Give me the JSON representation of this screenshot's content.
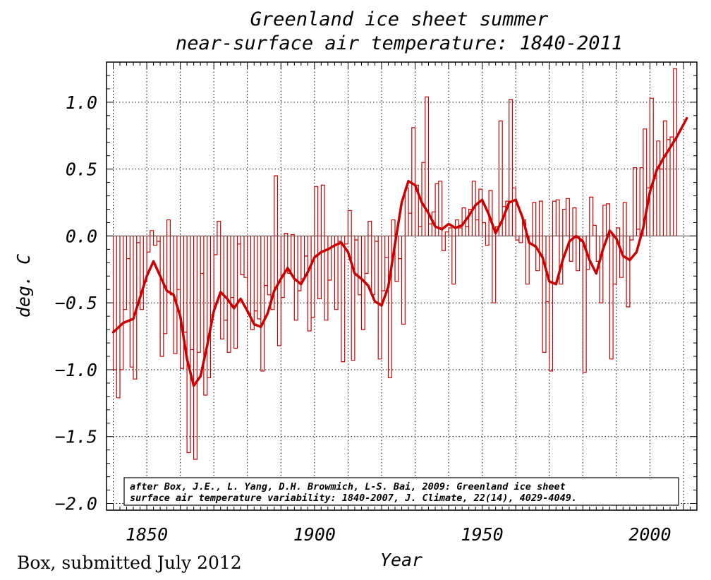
{
  "chart_data": {
    "type": "bar",
    "title": [
      "Greenland ice sheet summer",
      "near-surface air temperature: 1840-2011"
    ],
    "xlabel": "Year",
    "ylabel": "deg. C",
    "xlim": [
      1838,
      2014
    ],
    "ylim": [
      -2.05,
      1.3
    ],
    "xticks": [
      1850,
      1900,
      1950,
      2000
    ],
    "xtick_labels": [
      "1850",
      "1900",
      "1950",
      "2000"
    ],
    "yticks": [
      1.0,
      0.5,
      0.0,
      -0.5,
      -1.0,
      -1.5,
      -2.0
    ],
    "ytick_labels": [
      "1.0",
      "0.5",
      "0.0",
      "−0.5",
      "−1.0",
      "−1.5",
      "−2.0"
    ],
    "grid": true,
    "colors": {
      "series": "#cc0000",
      "axes": "#000000",
      "zero_line": "#555555"
    },
    "annotation": [
      "after Box, J.E., L. Yang, D.H. Browmich, L-S. Bai, 2009: Greenland ice sheet",
      "surface air temperature variability: 1840-2007, J. Climate, 22(14), 4029-4049."
    ],
    "series": [
      {
        "type": "step",
        "x_start": 1840,
        "values": [
          -1.0,
          -1.21,
          -1.0,
          -0.55,
          -0.17,
          -0.98,
          -1.07,
          -0.05,
          -0.55,
          -0.34,
          -0.12,
          0.04,
          -0.07,
          -0.04,
          -0.9,
          -0.73,
          0.12,
          -0.44,
          -0.88,
          -0.4,
          -0.99,
          -0.72,
          -1.62,
          -0.85,
          -1.67,
          -0.87,
          -0.28,
          -1.19,
          -1.06,
          -0.59,
          -0.14,
          0.11,
          -0.77,
          -0.63,
          -0.87,
          -0.46,
          -0.84,
          -0.06,
          -0.29,
          -0.31,
          -0.58,
          -0.7,
          -0.56,
          -0.62,
          -1.01,
          -0.37,
          -0.44,
          -0.55,
          0.45,
          -0.82,
          -0.46,
          0.02,
          -0.28,
          0.01,
          -0.63,
          -0.41,
          -0.32,
          -0.15,
          -0.71,
          -0.61,
          0.37,
          -0.47,
          0.38,
          -0.63,
          -0.33,
          -0.08,
          -0.55,
          -0.04,
          -0.94,
          -0.06,
          0.19,
          -0.93,
          -0.03,
          -0.44,
          -0.7,
          -0.28,
          0.11,
          -0.44,
          -0.04,
          -0.92,
          -0.41,
          -0.16,
          -1.06,
          0.12,
          -0.34,
          -0.17,
          -0.66,
          0.36,
          0.17,
          0.81,
          0.38,
          0.07,
          0.55,
          1.04,
          0.09,
          0.18,
          0.39,
          0.41,
          -0.11,
          0.03,
          0.06,
          -0.36,
          0.12,
          0.06,
          0.21,
          0.07,
          0.2,
          0.41,
          0.12,
          0.35,
          0.1,
          -0.07,
          0.34,
          -0.5,
          0.07,
          0.86,
          0.22,
          0.26,
          1.02,
          0.36,
          -0.03,
          -0.05,
          0.12,
          -0.36,
          -0.06,
          0.25,
          -0.26,
          0.26,
          -0.87,
          -0.49,
          -1.01,
          0.26,
          0.27,
          -0.36,
          0.2,
          0.28,
          -0.19,
          0.21,
          -0.26,
          -0.04,
          -1.02,
          -0.25,
          0.29,
          0.08,
          -0.19,
          -0.5,
          0.23,
          0.24,
          -0.92,
          -0.36,
          0.06,
          -0.31,
          0.25,
          -0.53,
          -0.03,
          0.51,
          0.05,
          0.51,
          0.8,
          0.36,
          1.03,
          0.43,
          0.71,
          0.5,
          0.86,
          0.72,
          0.74,
          1.25
        ]
      },
      {
        "type": "line",
        "x": [
          1840,
          1843,
          1846,
          1850,
          1852,
          1854,
          1856,
          1858,
          1860,
          1862,
          1864,
          1866,
          1868,
          1870,
          1872,
          1874,
          1876,
          1878,
          1880,
          1882,
          1884,
          1886,
          1888,
          1890,
          1892,
          1894,
          1896,
          1898,
          1900,
          1902,
          1904,
          1906,
          1908,
          1910,
          1912,
          1914,
          1916,
          1918,
          1920,
          1922,
          1924,
          1926,
          1928,
          1930,
          1932,
          1934,
          1936,
          1938,
          1940,
          1942,
          1944,
          1946,
          1948,
          1950,
          1952,
          1954,
          1956,
          1958,
          1960,
          1962,
          1964,
          1966,
          1968,
          1970,
          1972,
          1974,
          1976,
          1978,
          1980,
          1982,
          1984,
          1986,
          1988,
          1990,
          1992,
          1994,
          1996,
          1998,
          2000,
          2002,
          2004,
          2006,
          2008,
          2011
        ],
        "y": [
          -0.72,
          -0.65,
          -0.62,
          -0.3,
          -0.19,
          -0.3,
          -0.41,
          -0.44,
          -0.6,
          -0.92,
          -1.12,
          -1.05,
          -0.82,
          -0.56,
          -0.42,
          -0.47,
          -0.54,
          -0.47,
          -0.56,
          -0.66,
          -0.68,
          -0.58,
          -0.41,
          -0.32,
          -0.24,
          -0.32,
          -0.36,
          -0.27,
          -0.16,
          -0.12,
          -0.1,
          -0.07,
          -0.05,
          -0.12,
          -0.28,
          -0.32,
          -0.37,
          -0.49,
          -0.52,
          -0.38,
          -0.06,
          0.25,
          0.41,
          0.38,
          0.25,
          0.17,
          0.07,
          0.05,
          0.09,
          0.06,
          0.08,
          0.15,
          0.23,
          0.27,
          0.16,
          0.02,
          0.12,
          0.25,
          0.27,
          0.14,
          -0.05,
          -0.08,
          -0.16,
          -0.34,
          -0.36,
          -0.18,
          -0.04,
          0.0,
          -0.04,
          -0.18,
          -0.28,
          -0.1,
          0.04,
          -0.02,
          -0.15,
          -0.18,
          -0.12,
          0.06,
          0.33,
          0.49,
          0.58,
          0.66,
          0.74,
          0.88
        ]
      }
    ]
  },
  "footer": {
    "credit": "Box, submitted July 2012"
  }
}
